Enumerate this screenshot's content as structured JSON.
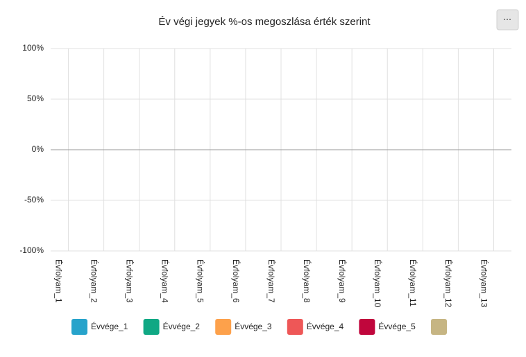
{
  "chart_data": {
    "type": "bar",
    "title": "Év végi jegyek %-os megoszlása érték szerint",
    "categories": [
      "Évfolyam_1",
      "Évfolyam_2",
      "Évfolyam_3",
      "Évfolyam_4",
      "Évfolyam_5",
      "Évfolyam_6",
      "Évfolyam_7",
      "Évfolyam_8",
      "Évfolyam_9",
      "Évfolyam_10",
      "Évfolyam_11",
      "Évfolyam_12",
      "Évfolyam_13"
    ],
    "series": [
      {
        "name": "Évvége_1",
        "color": "#27a3cb",
        "values": [
          null,
          null,
          null,
          null,
          null,
          null,
          null,
          null,
          null,
          null,
          null,
          null,
          null
        ]
      },
      {
        "name": "Évvége_2",
        "color": "#10a884",
        "values": [
          null,
          null,
          null,
          null,
          null,
          null,
          null,
          null,
          null,
          null,
          null,
          null,
          null
        ]
      },
      {
        "name": "Évvége_3",
        "color": "#fda14b",
        "values": [
          null,
          null,
          null,
          null,
          null,
          null,
          null,
          null,
          null,
          null,
          null,
          null,
          null
        ]
      },
      {
        "name": "Évvége_4",
        "color": "#ee5757",
        "values": [
          null,
          null,
          null,
          null,
          null,
          null,
          null,
          null,
          null,
          null,
          null,
          null,
          null
        ]
      },
      {
        "name": "Évvége_5",
        "color": "#c0063c",
        "values": [
          null,
          null,
          null,
          null,
          null,
          null,
          null,
          null,
          null,
          null,
          null,
          null,
          null
        ]
      },
      {
        "color": "#c6b583",
        "values": [
          null,
          null,
          null,
          null,
          null,
          null,
          null,
          null,
          null,
          null,
          null,
          null,
          null
        ]
      }
    ],
    "ylim": [
      -100,
      100
    ],
    "yticks": [
      {
        "value": 100,
        "label": "100%"
      },
      {
        "value": 50,
        "label": "50%"
      },
      {
        "value": 0,
        "label": "0%"
      },
      {
        "value": -50,
        "label": "-50%"
      },
      {
        "value": -100,
        "label": "-100%"
      }
    ],
    "grid": true
  }
}
